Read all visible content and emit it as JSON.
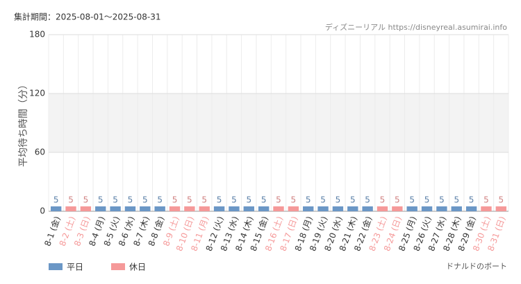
{
  "chart_data": {
    "type": "bar",
    "title": "集計期間：2025-08-01～2025-08-31",
    "source": "ディズニーリアル https://disneyreal.asumirai.info",
    "attraction": "ドナルドのボート",
    "y_label": "平均待ち時間（分）",
    "categories": [
      "8-1 (金)",
      "8-2 (土)",
      "8-3 (日)",
      "8-4 (月)",
      "8-5 (火)",
      "8-6 (水)",
      "8-7 (木)",
      "8-8 (金)",
      "8-9 (土)",
      "8-10 (日)",
      "8-11 (月)",
      "8-12 (火)",
      "8-13 (水)",
      "8-14 (木)",
      "8-15 (金)",
      "8-16 (土)",
      "8-17 (日)",
      "8-18 (月)",
      "8-19 (火)",
      "8-20 (水)",
      "8-21 (木)",
      "8-22 (金)",
      "8-23 (土)",
      "8-24 (日)",
      "8-25 (月)",
      "8-26 (火)",
      "8-27 (水)",
      "8-28 (木)",
      "8-29 (金)",
      "8-30 (土)",
      "8-31 (日)"
    ],
    "series": [
      {
        "name": "平日",
        "color": "#6b97c6",
        "values": [
          5,
          null,
          null,
          5,
          5,
          5,
          5,
          5,
          null,
          null,
          null,
          5,
          5,
          5,
          5,
          null,
          null,
          5,
          5,
          5,
          5,
          5,
          null,
          null,
          5,
          5,
          5,
          5,
          5,
          null,
          null
        ]
      },
      {
        "name": "休日",
        "color": "#f59999",
        "values": [
          null,
          5,
          5,
          null,
          null,
          null,
          null,
          null,
          5,
          5,
          5,
          null,
          null,
          null,
          null,
          5,
          5,
          null,
          null,
          null,
          null,
          null,
          5,
          5,
          null,
          null,
          null,
          null,
          null,
          5,
          5
        ]
      }
    ],
    "ylim": [
      0,
      180
    ],
    "yticks": [
      0,
      60,
      120,
      180
    ],
    "grid": true
  }
}
